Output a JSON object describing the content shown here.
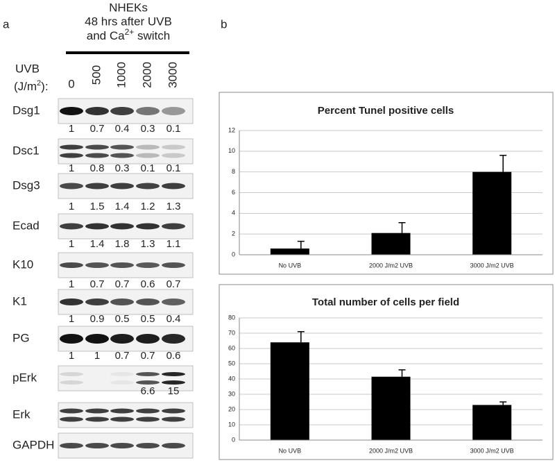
{
  "panel_a": {
    "label": "a",
    "header": {
      "line1": "NHEKs",
      "line2": "48 hrs after UVB",
      "line3": [
        "and Ca",
        "2+",
        " switch"
      ]
    },
    "dose_label": [
      "UVB",
      "(J/m",
      "2",
      "):"
    ],
    "doses": [
      "0",
      "500",
      "1000",
      "2000",
      "3000"
    ],
    "rows": [
      {
        "name": "Dsg1",
        "quant": [
          1,
          0.7,
          0.4,
          0.3,
          0.1
        ]
      },
      {
        "name": "Dsc1",
        "quant": [
          1,
          0.8,
          0.3,
          0.1,
          0.1
        ]
      },
      {
        "name": "Dsg3",
        "quant": [
          1,
          1.5,
          1.4,
          1.2,
          1.3
        ]
      },
      {
        "name": "Ecad",
        "quant": [
          1,
          1.4,
          1.8,
          1.3,
          1.1
        ]
      },
      {
        "name": "K10",
        "quant": [
          1,
          0.7,
          0.7,
          0.6,
          0.7
        ]
      },
      {
        "name": "K1",
        "quant": [
          1,
          0.9,
          0.5,
          0.5,
          0.4
        ]
      },
      {
        "name": "PG",
        "quant": [
          1,
          1,
          0.7,
          0.7,
          0.6
        ]
      },
      {
        "name": "pErk",
        "quant": [
          null,
          null,
          null,
          6.6,
          15
        ]
      },
      {
        "name": "Erk"
      },
      {
        "name": "GAPDH"
      }
    ]
  },
  "panel_b": {
    "label": "b"
  },
  "chart_data": [
    {
      "type": "bar",
      "title": "Percent Tunel positive cells",
      "categories": [
        "No UVB",
        "2000 J/m2 UVB",
        "3000 J/m2 UVB"
      ],
      "values": [
        0.6,
        2.1,
        8.0
      ],
      "errors": [
        0.7,
        1.0,
        1.6
      ],
      "color": "#000000",
      "ylim": [
        0,
        12
      ],
      "yticks": [
        0,
        2,
        4,
        6,
        8,
        10,
        12
      ],
      "grid": true
    },
    {
      "type": "bar",
      "title": "Total number of cells per field",
      "categories": [
        "No UVB",
        "2000 J/m2 UVB",
        "3000 J/m2 UVB"
      ],
      "values": [
        64,
        41.5,
        23
      ],
      "errors": [
        7,
        4.5,
        2
      ],
      "color": "#000000",
      "ylim": [
        0,
        80
      ],
      "yticks": [
        0,
        10,
        20,
        30,
        40,
        50,
        60,
        70,
        80
      ],
      "grid": true
    }
  ]
}
